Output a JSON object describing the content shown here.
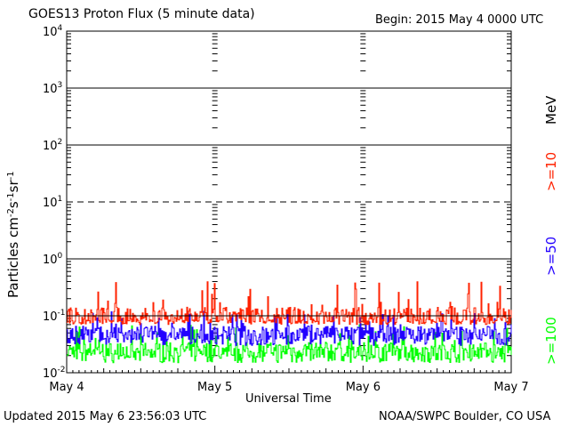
{
  "header": {
    "title": "GOES13 Proton Flux (5 minute data)",
    "begin": "Begin: 2015 May 4 0000 UTC"
  },
  "footer": {
    "updated": "Updated 2015 May  6 23:56:03 UTC",
    "source": "NOAA/SWPC Boulder, CO USA"
  },
  "chart_data": {
    "type": "line",
    "title": "GOES13 Proton Flux (5 minute data)",
    "xlabel": "Universal Time",
    "ylabel": "Particles cm-2s-1sr-1",
    "y_scale": "log",
    "ylim": [
      0.01,
      10000
    ],
    "x_ticks": [
      "May 4",
      "May 5",
      "May 6",
      "May 7"
    ],
    "y_ticks": [
      {
        "base": "10",
        "exp": "-2",
        "value": 0.01
      },
      {
        "base": "10",
        "exp": "-1",
        "value": 0.1
      },
      {
        "base": "10",
        "exp": "0",
        "value": 1
      },
      {
        "base": "10",
        "exp": "1",
        "value": 10
      },
      {
        "base": "10",
        "exp": "2",
        "value": 100
      },
      {
        "base": "10",
        "exp": "3",
        "value": 1000
      },
      {
        "base": "10",
        "exp": "4",
        "value": 10000
      }
    ],
    "grid": "solid horizontal lines at decades; dashed line at 10",
    "legend_unit": "MeV",
    "series": [
      {
        "name": ">=10",
        "color": "#ff2200",
        "min": 0.07,
        "max": 0.4,
        "typical": 0.1
      },
      {
        "name": ">=50",
        "color": "#2200ff",
        "min": 0.03,
        "max": 0.12,
        "typical": 0.05
      },
      {
        "name": ">=100",
        "color": "#00ff00",
        "min": 0.015,
        "max": 0.07,
        "typical": 0.025
      }
    ]
  }
}
